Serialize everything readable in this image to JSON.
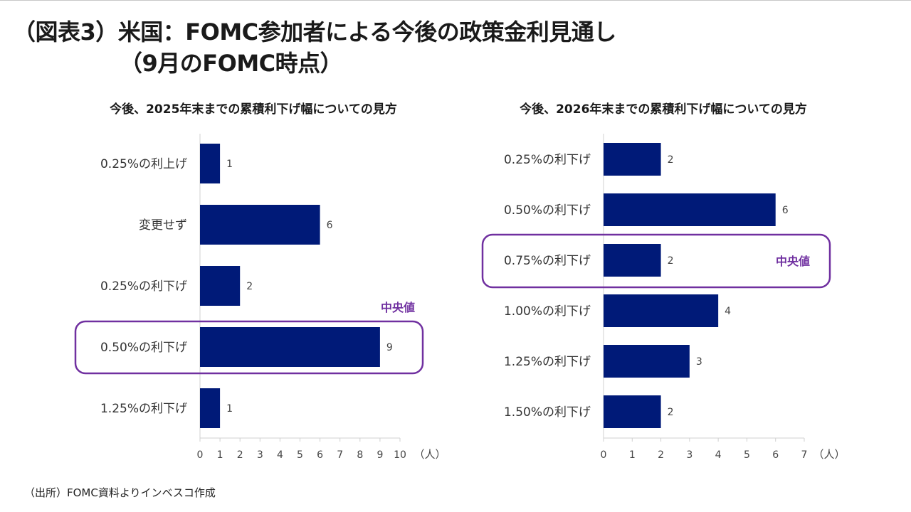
{
  "title": {
    "line1": "（図表3）米国：FOMC参加者による今後の政策金利見通し",
    "line2": "（9月のFOMC時点）"
  },
  "source": "（出所）FOMC資料よりインベスコ作成",
  "colors": {
    "bar": "#001a78",
    "highlight": "#7030a0",
    "axis": "#d0d0d0"
  },
  "chart_data": [
    {
      "type": "bar",
      "orientation": "horizontal",
      "title": "今後、2025年末までの累積利下げ幅についての見方",
      "categories": [
        "0.25%の利上げ",
        "変更せず",
        "0.25%の利下げ",
        "0.50%の利下げ",
        "1.25%の利下げ"
      ],
      "values": [
        1,
        6,
        2,
        9,
        1
      ],
      "xlim": [
        0,
        10
      ],
      "xticks": [
        "0",
        "1",
        "2",
        "3",
        "4",
        "5",
        "6",
        "7",
        "8",
        "9",
        "10"
      ],
      "xlabel": "（人）",
      "median_category": "0.50%の利下げ",
      "median_label": "中央値"
    },
    {
      "type": "bar",
      "orientation": "horizontal",
      "title": "今後、2026年末までの累積利下げ幅についての見方",
      "categories": [
        "0.25%の利下げ",
        "0.50%の利下げ",
        "0.75%の利下げ",
        "1.00%の利下げ",
        "1.25%の利下げ",
        "1.50%の利下げ"
      ],
      "values": [
        2,
        6,
        2,
        4,
        3,
        2
      ],
      "xlim": [
        0,
        7
      ],
      "xticks": [
        "0",
        "1",
        "2",
        "3",
        "4",
        "5",
        "6",
        "7"
      ],
      "xlabel": "（人）",
      "median_category": "0.75%の利下げ",
      "median_label": "中央値"
    }
  ]
}
